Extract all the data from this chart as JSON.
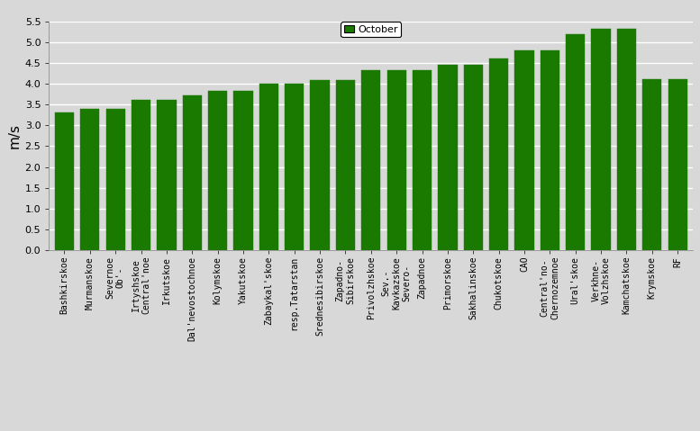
{
  "categories": [
    "Bashkirskoe",
    "Murmanskoe",
    "Severnoe\nOb'-",
    "Irtyshskoe\nCentral'noe",
    "Irkutskoe",
    "Dal'nevostochnoe",
    "Kolymskoe",
    "Yakutskoe",
    "Zabaykal'skoe",
    "resp.Tatarstan",
    "Srednesibirskoe",
    "Zapadno-\nSibirskoe",
    "Privolzhskoe",
    "Sev.-\nKavkazskoe\nSevero-",
    "Zapadnoe",
    "Primorskoe",
    "Sakhalinskoe",
    "Chukotskoe",
    "CAO",
    "Central'no-\nChernozemnoe",
    "Ural'skoe",
    "Verkhne-\nVolzhskoe",
    "Kamchatskoe",
    "Krymskoe",
    "RF"
  ],
  "values": [
    3.3,
    3.4,
    3.4,
    3.62,
    3.62,
    3.72,
    3.82,
    3.82,
    4.01,
    4.01,
    4.1,
    4.1,
    4.32,
    4.32,
    4.32,
    4.45,
    4.45,
    4.62,
    4.8,
    4.8,
    5.2,
    5.32,
    5.32,
    4.12,
    4.12
  ],
  "bar_color": "#1a7a00",
  "ylabel": "m/s",
  "ylim": [
    0,
    5.5
  ],
  "yticks": [
    0,
    0.5,
    1.0,
    1.5,
    2.0,
    2.5,
    3.0,
    3.5,
    4.0,
    4.5,
    5.0,
    5.5
  ],
  "legend_label": "October",
  "legend_color": "#1a7a00",
  "bg_color": "#d8d8d8",
  "plot_bg": "#d8d8d8"
}
